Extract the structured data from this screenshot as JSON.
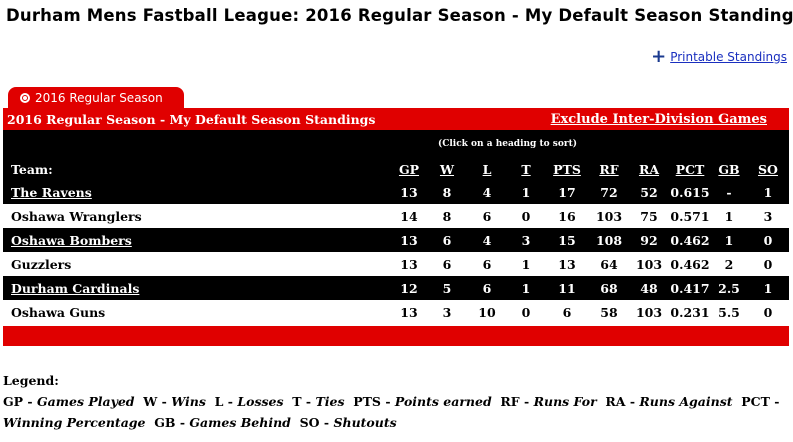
{
  "page": {
    "title": "Durham Mens Fastball League: 2016 Regular Season - My Default Season Standings",
    "printable_link": "Printable Standings"
  },
  "tab": {
    "label": "2016 Regular Season"
  },
  "standings": {
    "header_title": "2016 Regular Season - My Default Season Standings",
    "exclude_link": "Exclude Inter-Division Games",
    "sort_hint": "(Click on a heading to sort)",
    "columns": {
      "team": "Team:",
      "gp": "GP",
      "w": "W",
      "l": "L",
      "t": "T",
      "pts": "PTS",
      "rf": "RF",
      "ra": "RA",
      "pct": "PCT",
      "gb": "GB",
      "so": "SO"
    },
    "rows": [
      {
        "team": "The Ravens",
        "gp": "13",
        "w": "8",
        "l": "4",
        "t": "1",
        "pts": "17",
        "rf": "72",
        "ra": "52",
        "pct": "0.615",
        "gb": "-",
        "so": "1"
      },
      {
        "team": "Oshawa Wranglers",
        "gp": "14",
        "w": "8",
        "l": "6",
        "t": "0",
        "pts": "16",
        "rf": "103",
        "ra": "75",
        "pct": "0.571",
        "gb": "1",
        "so": "3"
      },
      {
        "team": "Oshawa Bombers",
        "gp": "13",
        "w": "6",
        "l": "4",
        "t": "3",
        "pts": "15",
        "rf": "108",
        "ra": "92",
        "pct": "0.462",
        "gb": "1",
        "so": "0"
      },
      {
        "team": "Guzzlers",
        "gp": "13",
        "w": "6",
        "l": "6",
        "t": "1",
        "pts": "13",
        "rf": "64",
        "ra": "103",
        "pct": "0.462",
        "gb": "2",
        "so": "0"
      },
      {
        "team": "Durham Cardinals",
        "gp": "12",
        "w": "5",
        "l": "6",
        "t": "1",
        "pts": "11",
        "rf": "68",
        "ra": "48",
        "pct": "0.417",
        "gb": "2.5",
        "so": "1"
      },
      {
        "team": "Oshawa Guns",
        "gp": "13",
        "w": "3",
        "l": "10",
        "t": "0",
        "pts": "6",
        "rf": "58",
        "ra": "103",
        "pct": "0.231",
        "gb": "5.5",
        "so": "0"
      }
    ]
  },
  "legend": {
    "title": "Legend:",
    "items": [
      {
        "abbr": "GP",
        "desc": "Games Played"
      },
      {
        "abbr": "W",
        "desc": "Wins"
      },
      {
        "abbr": "L",
        "desc": "Losses"
      },
      {
        "abbr": "T",
        "desc": "Ties"
      },
      {
        "abbr": "PTS",
        "desc": "Points earned"
      },
      {
        "abbr": "RF",
        "desc": "Runs For"
      },
      {
        "abbr": "RA",
        "desc": "Runs Against"
      },
      {
        "abbr": "PCT",
        "desc": "Winning Percentage"
      },
      {
        "abbr": "GB",
        "desc": "Games Behind"
      },
      {
        "abbr": "SO",
        "desc": "Shutouts"
      }
    ]
  },
  "colors": {
    "accent_red": "#e00000",
    "dark_row": "#000000",
    "link_blue": "#1a2fbf"
  }
}
